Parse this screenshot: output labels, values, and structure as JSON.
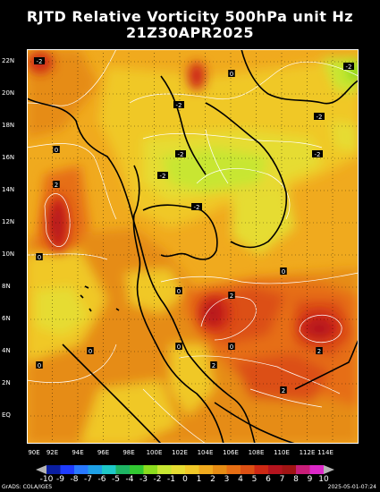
{
  "title_line1": "RJTD Relative Vorticity 500hPa unit Hz",
  "title_line2": "21Z30APR2025",
  "lat_labels": [
    "22N",
    "20N",
    "18N",
    "16N",
    "14N",
    "12N",
    "10N",
    "8N",
    "6N",
    "4N",
    "2N",
    "EQ"
  ],
  "lon_labels": [
    "90E",
    "92E",
    "94E",
    "96E",
    "98E",
    "100E",
    "102E",
    "104E",
    "106E",
    "108E",
    "110E",
    "112E",
    "114E"
  ],
  "colorbar": {
    "labels": [
      "-10",
      "-9",
      "-8",
      "-7",
      "-6",
      "-5",
      "-4",
      "-3",
      "-2",
      "-1",
      "0",
      "1",
      "2",
      "3",
      "4",
      "5",
      "6",
      "7",
      "8",
      "9",
      "10"
    ],
    "colors": [
      "#0a1ea0",
      "#1e3cff",
      "#2878ff",
      "#1ea0e6",
      "#1ec8c8",
      "#1eb464",
      "#32c832",
      "#8cdc1e",
      "#c8e632",
      "#e6dc32",
      "#f0c828",
      "#f0aa1e",
      "#e68c14",
      "#e66e14",
      "#dc5014",
      "#cd2814",
      "#b4141e",
      "#a01414",
      "#c81e78",
      "#dc28c8"
    ],
    "underflow_color": "#b4b4b4",
    "overflow_color": "#b4b4b4"
  },
  "footer_left": "GrADS: COLA/IGES",
  "footer_right": "2025-05-01-07:24",
  "contour_labels": [
    "0",
    "-2",
    "0",
    "-2",
    "-2",
    "-2",
    "-2",
    "-2",
    "2",
    "0",
    "0",
    "0",
    "2",
    "0",
    "0",
    "2",
    "0",
    "2",
    "0",
    "2",
    "-2",
    "-2"
  ]
}
